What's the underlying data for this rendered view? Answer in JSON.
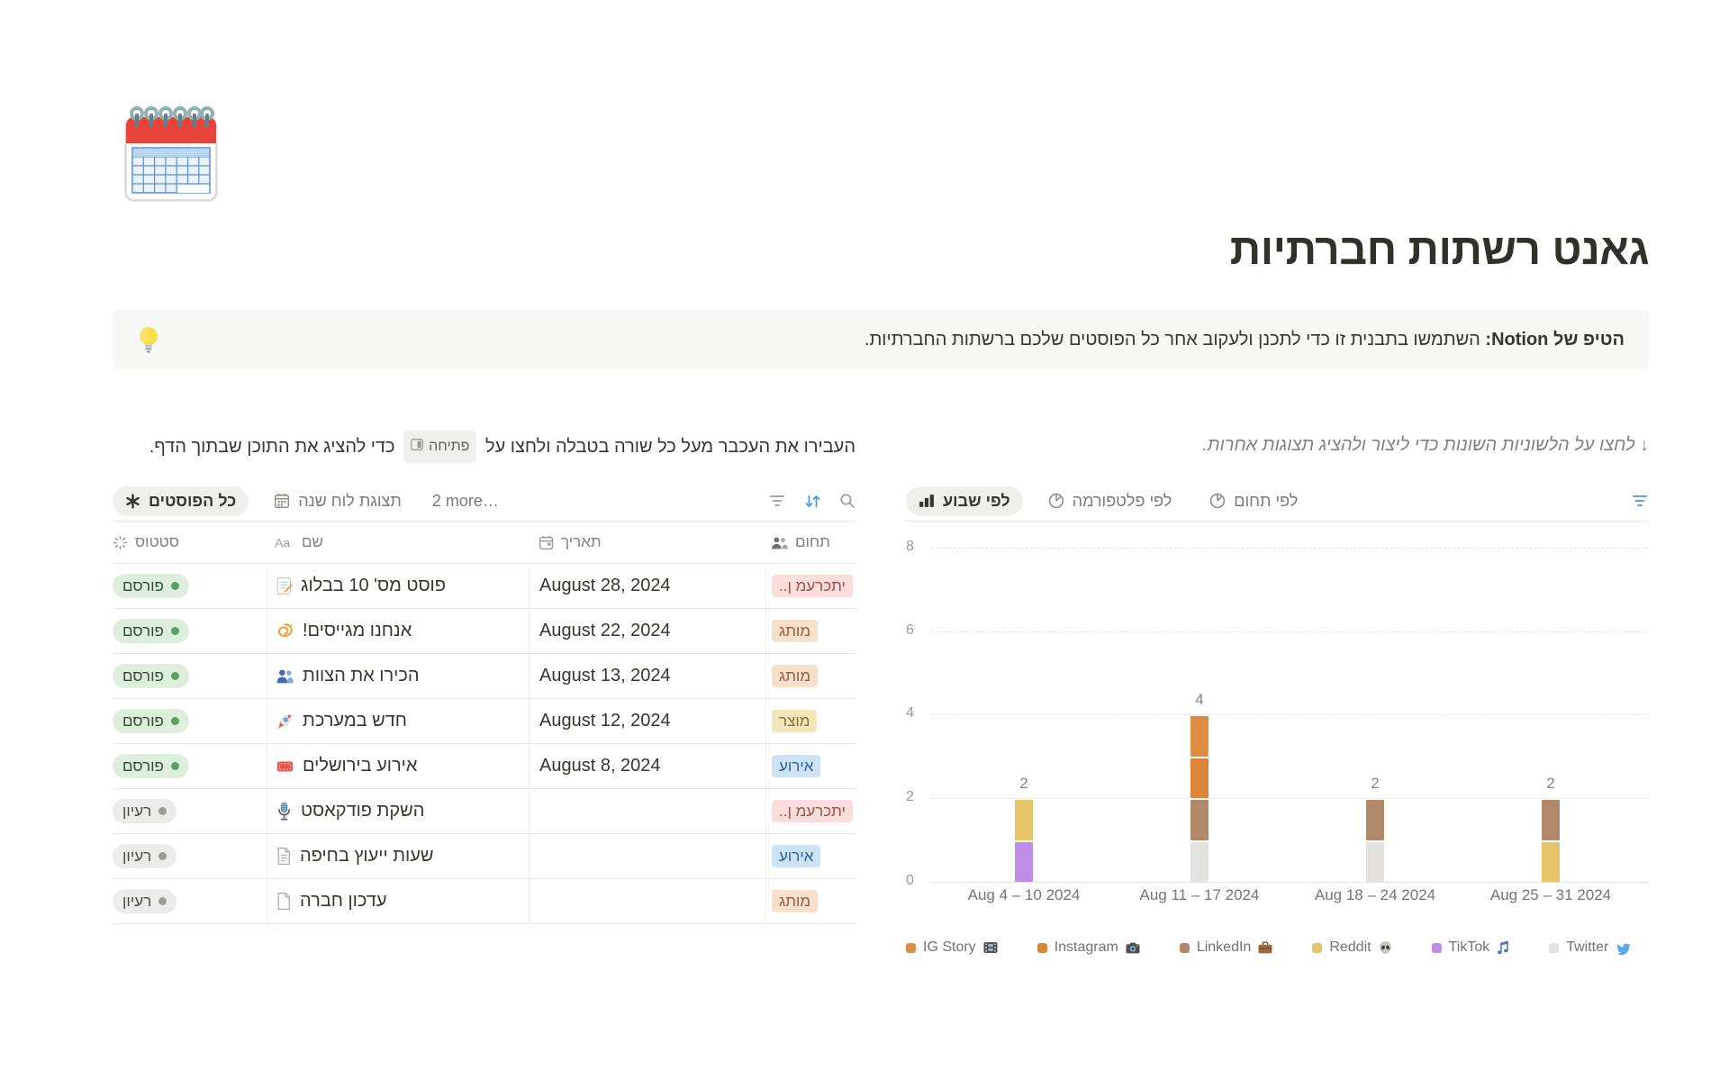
{
  "page": {
    "title": "גאנט רשתות חברתיות",
    "icon": "spiral-calendar-icon"
  },
  "callout": {
    "icon": "light-bulb-icon",
    "bold_text": "הטיפ של Notion:",
    "text": " השתמשו בתבנית זו כדי לתכנן ולעקוב אחר כל הפוסטים שלכם ברשתות החברתיות."
  },
  "left_panel": {
    "instruction_prefix": "העבירו את העכבר מעל כל שורה בטבלה ולחצו על",
    "open_button_label": "פתיחה",
    "open_button_icon": "peek-icon",
    "instruction_suffix": "כדי להציג את התוכן שבתוך הדף.",
    "tabs": [
      {
        "label": "כל הפוסטים",
        "icon": "asterisk-icon",
        "active": true
      },
      {
        "label": "תצוגת לוח שנה",
        "icon": "calendar-view-icon",
        "active": false
      }
    ],
    "more_tabs_label": "2 more…",
    "toolbar_icons": [
      "filter-icon",
      "sort-icon",
      "search-icon"
    ],
    "table": {
      "headers": [
        {
          "label": "סטטוס",
          "icon": "status-spinner-icon"
        },
        {
          "label": "שם",
          "icon": "aa-icon"
        },
        {
          "label": "תאריך",
          "icon": "calendar-outline-icon"
        },
        {
          "label": "תחום",
          "icon": "people-icon"
        }
      ],
      "status_styles": {
        "green": {
          "bg": "#DEEEDD",
          "dot": "#58A15E",
          "text": "#2F4A33"
        },
        "gray": {
          "bg": "#EBEBE9",
          "dot": "#9D9C99",
          "text": "#4A4945"
        }
      },
      "tag_styles": {
        "pink": {
          "bg": "#FBDEDB",
          "text": "#98514A"
        },
        "orange": {
          "bg": "#F6DFCB",
          "text": "#9A5B3A"
        },
        "yellow": {
          "bg": "#F0E6BA",
          "text": "#8A6C2F"
        },
        "blue": {
          "bg": "#CDE3F5",
          "text": "#33618F"
        }
      },
      "rows": [
        {
          "status": "פורסם",
          "status_variant": "green",
          "icon": "memo-icon",
          "name": "פוסט מס' 10 בבלוג",
          "date": "August 28, 2024",
          "tag": "..ן מערכתי",
          "tag_color": "pink",
          "tag_truncated": true
        },
        {
          "status": "פורסם",
          "status_variant": "green",
          "icon": "dizzy-icon",
          "name": "אנחנו מגייסים!",
          "date": "August 22, 2024",
          "tag": "מותג",
          "tag_color": "orange",
          "tag_truncated": false
        },
        {
          "status": "פורסם",
          "status_variant": "green",
          "icon": "busts-icon",
          "name": "הכירו את הצוות",
          "date": "August 13, 2024",
          "tag": "מותג",
          "tag_color": "orange",
          "tag_truncated": false
        },
        {
          "status": "פורסם",
          "status_variant": "green",
          "icon": "rocket-icon",
          "name": "חדש במערכת",
          "date": "August 12, 2024",
          "tag": "מוצר",
          "tag_color": "yellow",
          "tag_truncated": false
        },
        {
          "status": "פורסם",
          "status_variant": "green",
          "icon": "tickets-icon",
          "name": "אירוע בירושלים",
          "date": "August 8, 2024",
          "tag": "אירוע",
          "tag_color": "blue",
          "tag_truncated": false
        },
        {
          "status": "רעיון",
          "status_variant": "gray",
          "icon": "microphone-icon",
          "name": "השקת פודקאסט",
          "date": "",
          "tag": "..ן מערכתי",
          "tag_color": "pink",
          "tag_truncated": true
        },
        {
          "status": "רעיון",
          "status_variant": "gray",
          "icon": "page-text-icon",
          "name": "שעות ייעוץ בחיפה",
          "date": "",
          "tag": "אירוע",
          "tag_color": "blue",
          "tag_truncated": false
        },
        {
          "status": "רעיון",
          "status_variant": "gray",
          "icon": "page-blank-icon",
          "name": "עדכון חברה",
          "date": "",
          "tag": "מותג",
          "tag_color": "orange",
          "tag_truncated": false
        }
      ]
    }
  },
  "right_panel": {
    "note": "↓ לחצו על הלשוניות השונות כדי ליצור ולהציג תצוגות אחרות.",
    "tabs": [
      {
        "label": "לפי שבוע",
        "icon": "bar-chart-icon",
        "active": true
      },
      {
        "label": "לפי פלטפורמה",
        "icon": "pie-icon",
        "active": false
      },
      {
        "label": "לפי תחום",
        "icon": "pie-icon",
        "active": false
      }
    ],
    "toolbar_icons": [
      "filter-icon-blue"
    ]
  },
  "chart_data": {
    "type": "bar",
    "stacked": true,
    "title": "",
    "xlabel": "",
    "ylabel": "",
    "categories": [
      "Aug 4 – 10 2024",
      "Aug 11 – 17 2024",
      "Aug 18 – 24 2024",
      "Aug 25 – 31 2024"
    ],
    "series": [
      {
        "name": "IG Story",
        "legend_icon": "film-icon",
        "color": "#DE8C42",
        "values": [
          0,
          1,
          0,
          0
        ]
      },
      {
        "name": "Instagram",
        "legend_icon": "camera-icon",
        "color": "#DC8538",
        "values": [
          0,
          1,
          0,
          0
        ]
      },
      {
        "name": "LinkedIn",
        "legend_icon": "briefcase-icon",
        "color": "#B1886A",
        "values": [
          0,
          1,
          1,
          1
        ]
      },
      {
        "name": "Reddit",
        "legend_icon": "alien-icon",
        "color": "#E7C368",
        "values": [
          1,
          0,
          0,
          1
        ]
      },
      {
        "name": "TikTok",
        "legend_icon": "music-icon",
        "color": "#BF8DE6",
        "values": [
          1,
          0,
          0,
          0
        ]
      },
      {
        "name": "Twitter",
        "legend_icon": "bird-icon",
        "color": "#E3E2E0",
        "values": [
          0,
          1,
          1,
          0
        ]
      }
    ],
    "stack_order_bottom_up": [
      "Twitter",
      "TikTok",
      "Reddit",
      "LinkedIn",
      "Instagram",
      "IG Story"
    ],
    "bar_totals": [
      2,
      4,
      2,
      2
    ],
    "y_ticks": [
      0,
      2,
      4,
      6,
      8
    ],
    "ylim": [
      0,
      8
    ],
    "grid": "dashed-horizontal",
    "legend_position": "bottom"
  }
}
